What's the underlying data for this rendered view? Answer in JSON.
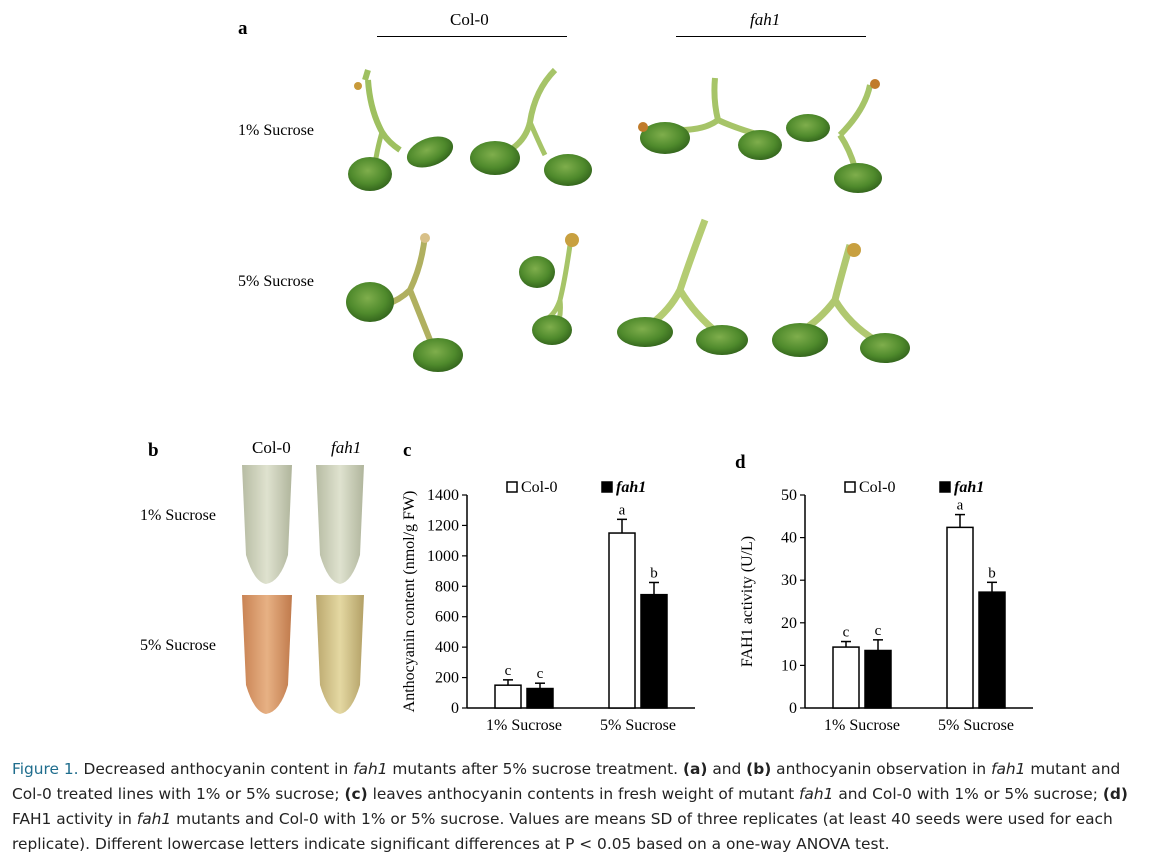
{
  "panel_a": {
    "letter": "a",
    "genotypes": [
      "Col-0",
      "fah1"
    ],
    "rows": [
      "1% Sucrose",
      "5% Sucrose"
    ]
  },
  "panel_b": {
    "letter": "b",
    "genotypes": [
      "Col-0",
      "fah1"
    ],
    "rows": [
      "1% Sucrose",
      "5% Sucrose"
    ],
    "tube_colors": {
      "col0_1": "#cfd3bb",
      "fah1_1": "#d3d6bd",
      "col0_5": "#d9986a",
      "fah1_5": "#d6c689"
    }
  },
  "chart_data": [
    {
      "type": "bar",
      "letter": "c",
      "ylabel": "Anthocyanin content (nmol/g FW)",
      "categories": [
        "1% Sucrose",
        "5% Sucrose"
      ],
      "ylim": [
        0,
        1400
      ],
      "yticks": [
        0,
        200,
        400,
        600,
        800,
        1000,
        1200,
        1400
      ],
      "series": [
        {
          "name": "Col-0",
          "values": [
            150,
            1150
          ],
          "errors": [
            35,
            90
          ],
          "letters": [
            "c",
            "a"
          ],
          "color": "#ffffff"
        },
        {
          "name": "fah1",
          "values": [
            128,
            745
          ],
          "errors": [
            35,
            80
          ],
          "letters": [
            "c",
            "b"
          ],
          "color": "#000000"
        }
      ]
    },
    {
      "type": "bar",
      "letter": "d",
      "ylabel": "FAH1 activity (U/L)",
      "categories": [
        "1% Sucrose",
        "5% Sucrose"
      ],
      "ylim": [
        0,
        50
      ],
      "yticks": [
        0,
        10,
        20,
        30,
        40,
        50
      ],
      "series": [
        {
          "name": "Col-0",
          "values": [
            14.3,
            42.4
          ],
          "errors": [
            1.3,
            3.0
          ],
          "letters": [
            "c",
            "a"
          ],
          "color": "#ffffff"
        },
        {
          "name": "fah1",
          "values": [
            13.5,
            27.2
          ],
          "errors": [
            2.5,
            2.3
          ],
          "letters": [
            "c",
            "b"
          ],
          "color": "#000000"
        }
      ]
    }
  ],
  "caption": {
    "fig_label": "Figure 1.",
    "p1": " Decreased anthocyanin content in ",
    "g1": "fah1",
    "p2": " mutants after 5% sucrose treatment. ",
    "l_a": "(a)",
    "p3": " and ",
    "l_b": "(b)",
    "p4": " anthocyanin observation in ",
    "g2": "fah1",
    "p5": " mutant and Col-0 treated lines with 1% or 5% sucrose; ",
    "l_c": "(c)",
    "p6": " leaves anthocyanin contents in fresh weight of mutant ",
    "g3": "fah1",
    "p7": " and Col-0 with 1% or 5% sucrose; ",
    "l_d": "(d)",
    "p8": " FAH1 activity in ",
    "g4": "fah1",
    "p9": " mutants and Col-0 with 1% or 5% sucrose. Values are means SD of three replicates (at least 40 seeds were used for each replicate). Different lowercase letters indicate significant differences at P < 0.05 based on a one-way ANOVA test."
  }
}
